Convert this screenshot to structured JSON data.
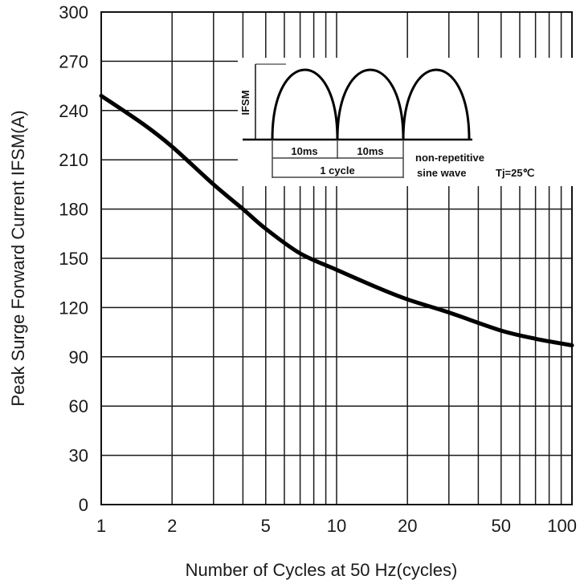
{
  "chart_data": {
    "type": "line",
    "xlabel": "Number of Cycles at 50 Hz(cycles)",
    "ylabel": "Peak Surge Forward Current IFSM(A)",
    "xscale": "log",
    "xlim": [
      1,
      100
    ],
    "ylim": [
      0,
      300
    ],
    "xticks": [
      1,
      2,
      5,
      10,
      20,
      50,
      100
    ],
    "yticks": [
      0,
      30,
      60,
      90,
      120,
      150,
      180,
      210,
      240,
      270,
      300
    ],
    "grid": true,
    "series": [
      {
        "x": [
          1,
          1.5,
          2,
          3,
          4,
          5,
          7,
          10,
          15,
          20,
          30,
          50,
          70,
          100
        ],
        "y": [
          249,
          232,
          218,
          195,
          180,
          168,
          153,
          143,
          132,
          125,
          117,
          106,
          101,
          97
        ]
      }
    ],
    "inset": {
      "ifsm_label": "IFSM",
      "half_period_1": "10ms",
      "half_period_2": "10ms",
      "cycle_label": "1 cycle",
      "note_line1": "non-repetitive",
      "note_line2": "sine wave",
      "condition": "Tj=25℃"
    }
  }
}
